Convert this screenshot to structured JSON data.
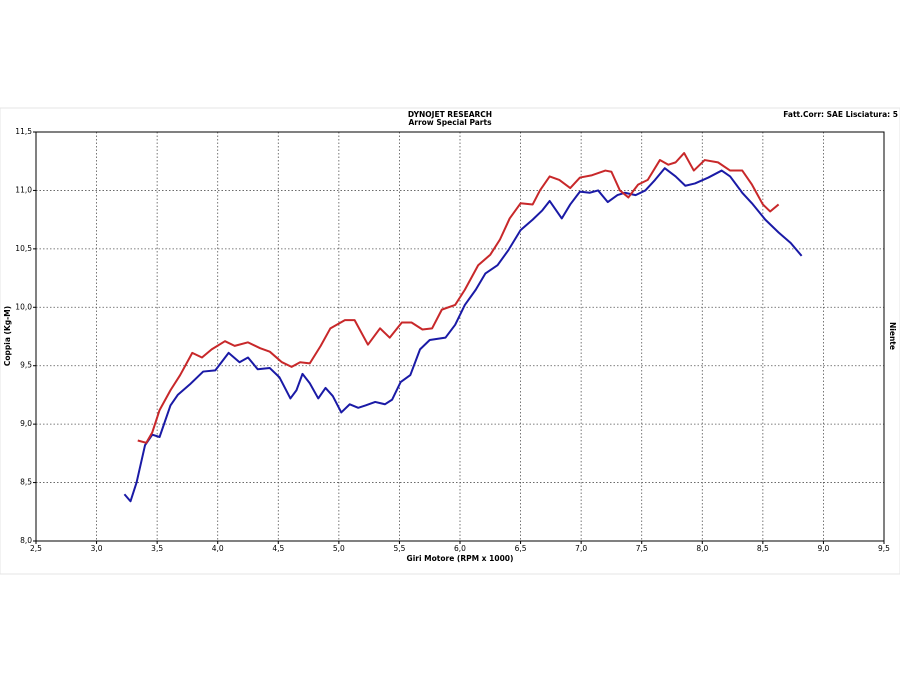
{
  "chart_data": {
    "type": "line",
    "title": "DYNOJET RESEARCH",
    "subtitle": "Arrow Special Parts",
    "corner_note": "Fatt.Corr: SAE  Lisciatura: 5",
    "x_label": "Giri Motore (RPM x 1000)",
    "y_label": "Coppia (Kg-M)",
    "right_label": "Niente",
    "grid": true,
    "xlim": [
      2.5,
      9.5
    ],
    "ylim": [
      8.0,
      11.5
    ],
    "xticks": [
      {
        "value": 2.5,
        "label": "2,5"
      },
      {
        "value": 3.0,
        "label": "3,0"
      },
      {
        "value": 3.5,
        "label": "3,5"
      },
      {
        "value": 4.0,
        "label": "4,0"
      },
      {
        "value": 4.5,
        "label": "4,5"
      },
      {
        "value": 5.0,
        "label": "5,0"
      },
      {
        "value": 5.5,
        "label": "5,5"
      },
      {
        "value": 6.0,
        "label": "6,0"
      },
      {
        "value": 6.5,
        "label": "6,5"
      },
      {
        "value": 7.0,
        "label": "7,0"
      },
      {
        "value": 7.5,
        "label": "7,5"
      },
      {
        "value": 8.0,
        "label": "8,0"
      },
      {
        "value": 8.5,
        "label": "8,5"
      },
      {
        "value": 9.0,
        "label": "9,0"
      },
      {
        "value": 9.5,
        "label": "9,5"
      }
    ],
    "yticks": [
      {
        "value": 8.0,
        "label": "8,0"
      },
      {
        "value": 8.5,
        "label": "8,5"
      },
      {
        "value": 9.0,
        "label": "9,0"
      },
      {
        "value": 9.5,
        "label": "9,5"
      },
      {
        "value": 10.0,
        "label": "10,0"
      },
      {
        "value": 10.5,
        "label": "10,5"
      },
      {
        "value": 11.0,
        "label": "11,0"
      },
      {
        "value": 11.5,
        "label": "11,5"
      }
    ],
    "series": [
      {
        "color": "#1a1aa6",
        "x": [
          3.23,
          3.28,
          3.33,
          3.4,
          3.46,
          3.52,
          3.61,
          3.67,
          3.77,
          3.88,
          3.98,
          4.09,
          4.18,
          4.25,
          4.33,
          4.43,
          4.51,
          4.6,
          4.65,
          4.7,
          4.76,
          4.83,
          4.89,
          4.95,
          5.02,
          5.09,
          5.16,
          5.22,
          5.3,
          5.38,
          5.44,
          5.51,
          5.59,
          5.67,
          5.75,
          5.88,
          5.96,
          6.04,
          6.13,
          6.21,
          6.31,
          6.4,
          6.5,
          6.6,
          6.68,
          6.74,
          6.84,
          6.91,
          6.99,
          7.07,
          7.14,
          7.22,
          7.3,
          7.36,
          7.45,
          7.53,
          7.61,
          7.69,
          7.78,
          7.86,
          7.94,
          8.05,
          8.16,
          8.23,
          8.33,
          8.41,
          8.52,
          8.63,
          8.73,
          8.82
        ],
        "values": [
          8.4,
          8.34,
          8.5,
          8.82,
          8.91,
          8.89,
          9.16,
          9.25,
          9.34,
          9.45,
          9.46,
          9.61,
          9.53,
          9.57,
          9.47,
          9.48,
          9.4,
          9.22,
          9.29,
          9.43,
          9.35,
          9.22,
          9.31,
          9.24,
          9.1,
          9.17,
          9.14,
          9.16,
          9.19,
          9.17,
          9.21,
          9.36,
          9.42,
          9.64,
          9.72,
          9.74,
          9.85,
          10.02,
          10.15,
          10.29,
          10.36,
          10.49,
          10.66,
          10.75,
          10.83,
          10.91,
          10.76,
          10.88,
          10.99,
          10.98,
          11.0,
          10.9,
          10.96,
          10.98,
          10.96,
          11.0,
          11.09,
          11.19,
          11.12,
          11.04,
          11.06,
          11.11,
          11.17,
          11.12,
          10.98,
          10.89,
          10.75,
          10.64,
          10.55,
          10.44
        ]
      },
      {
        "color": "#c8282a",
        "x": [
          3.34,
          3.41,
          3.46,
          3.52,
          3.61,
          3.69,
          3.79,
          3.87,
          3.95,
          4.06,
          4.14,
          4.25,
          4.35,
          4.43,
          4.53,
          4.61,
          4.68,
          4.76,
          4.85,
          4.93,
          5.05,
          5.13,
          5.24,
          5.34,
          5.42,
          5.52,
          5.6,
          5.69,
          5.77,
          5.85,
          5.96,
          6.04,
          6.15,
          6.25,
          6.33,
          6.41,
          6.5,
          6.6,
          6.66,
          6.74,
          6.82,
          6.91,
          6.99,
          7.09,
          7.2,
          7.25,
          7.32,
          7.39,
          7.47,
          7.55,
          7.65,
          7.72,
          7.78,
          7.85,
          7.93,
          8.02,
          8.13,
          8.23,
          8.33,
          8.41,
          8.5,
          8.56,
          8.63
        ],
        "values": [
          8.86,
          8.84,
          8.93,
          9.12,
          9.29,
          9.42,
          9.61,
          9.57,
          9.64,
          9.71,
          9.67,
          9.7,
          9.65,
          9.62,
          9.53,
          9.49,
          9.53,
          9.52,
          9.67,
          9.82,
          9.89,
          9.89,
          9.68,
          9.82,
          9.74,
          9.87,
          9.87,
          9.81,
          9.82,
          9.98,
          10.02,
          10.15,
          10.36,
          10.45,
          10.58,
          10.76,
          10.89,
          10.88,
          11.0,
          11.12,
          11.09,
          11.02,
          11.11,
          11.13,
          11.17,
          11.16,
          11.0,
          10.94,
          11.05,
          11.09,
          11.26,
          11.22,
          11.24,
          11.32,
          11.17,
          11.26,
          11.24,
          11.17,
          11.17,
          11.05,
          10.88,
          10.82,
          10.88
        ]
      }
    ]
  }
}
